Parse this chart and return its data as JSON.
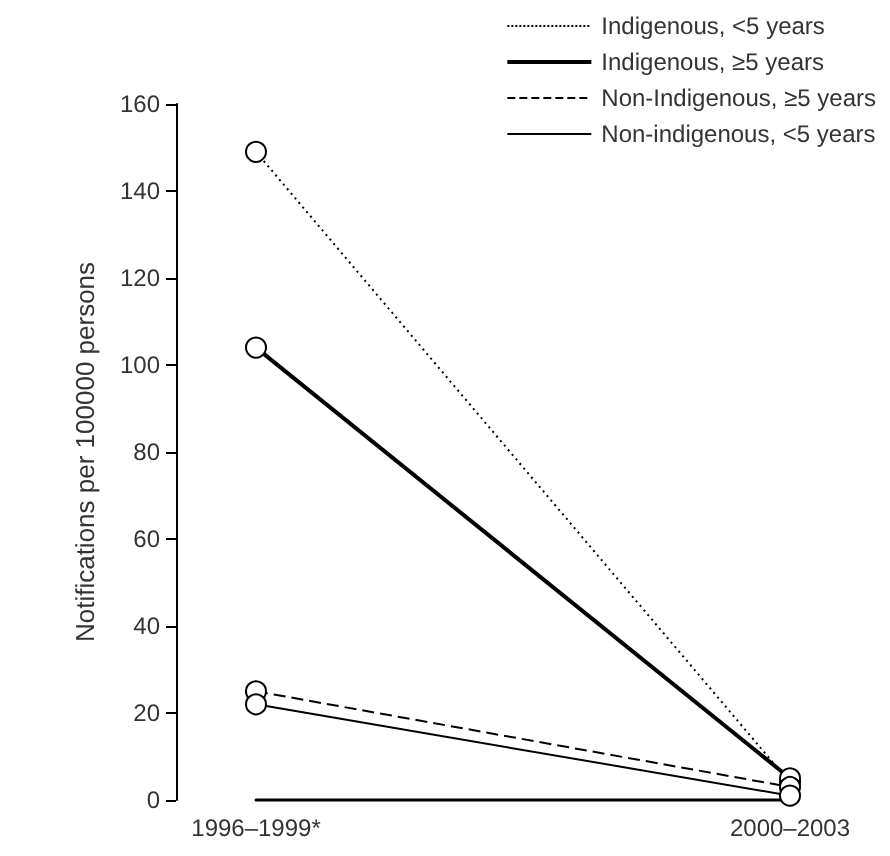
{
  "chart_data": {
    "type": "line",
    "ylabel": "Notifications per 100000 persons",
    "categories": [
      "1996–1999*",
      "2000–2003"
    ],
    "ylim": [
      0,
      160
    ],
    "yticks": [
      0,
      20,
      40,
      60,
      80,
      100,
      120,
      140,
      160
    ],
    "grid": false,
    "legend": "top right",
    "marker": "circle",
    "series": [
      {
        "name": "Indigenous, <5 years",
        "color": "#000000",
        "line_style": "dotted",
        "values": [
          149,
          4
        ]
      },
      {
        "name": "Indigenous, ≥5 years",
        "color": "#000000",
        "line_style": "solid",
        "values": [
          104,
          5
        ]
      },
      {
        "name": "Non-Indigenous, ≥5 years",
        "color": "#000000",
        "line_style": "dashed",
        "values": [
          25,
          3
        ]
      },
      {
        "name": "Non-indigenous, <5 years",
        "color": "#000000",
        "line_style": "solid",
        "values": [
          22,
          1
        ]
      }
    ]
  }
}
